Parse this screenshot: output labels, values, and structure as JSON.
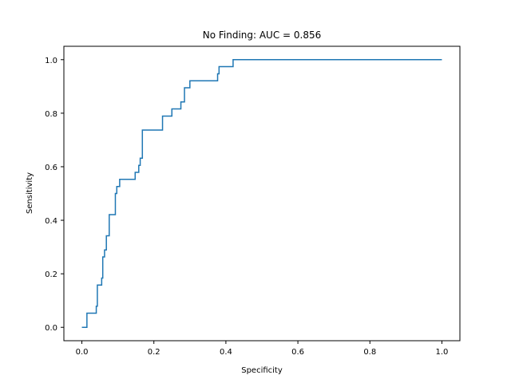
{
  "chart_data": {
    "type": "line",
    "title": "No Finding: AUC = 0.856",
    "xlabel": "Specificity",
    "ylabel": "Sensitivity",
    "xlim": [
      -0.05,
      1.05
    ],
    "ylim": [
      -0.05,
      1.05
    ],
    "xticks": [
      "0.0",
      "0.2",
      "0.4",
      "0.6",
      "0.8",
      "1.0"
    ],
    "yticks": [
      "0.0",
      "0.2",
      "0.4",
      "0.6",
      "0.8",
      "1.0"
    ],
    "grid": false,
    "color": "#1f77b4",
    "series": [
      {
        "x": [
          0.0,
          0.014,
          0.014,
          0.04,
          0.04,
          0.043,
          0.043,
          0.055,
          0.055,
          0.058,
          0.058,
          0.063,
          0.063,
          0.068,
          0.068,
          0.076,
          0.076,
          0.093,
          0.093,
          0.097,
          0.097,
          0.105,
          0.105,
          0.148,
          0.148,
          0.158,
          0.158,
          0.162,
          0.162,
          0.168,
          0.168,
          0.224,
          0.224,
          0.25,
          0.25,
          0.275,
          0.275,
          0.285,
          0.285,
          0.3,
          0.3,
          0.377,
          0.377,
          0.381,
          0.381,
          0.42,
          0.42,
          1.0
        ],
        "y": [
          0.0,
          0.0,
          0.053,
          0.053,
          0.079,
          0.079,
          0.158,
          0.158,
          0.184,
          0.184,
          0.263,
          0.263,
          0.289,
          0.289,
          0.342,
          0.342,
          0.421,
          0.421,
          0.5,
          0.5,
          0.526,
          0.526,
          0.553,
          0.553,
          0.579,
          0.579,
          0.605,
          0.605,
          0.632,
          0.632,
          0.737,
          0.737,
          0.789,
          0.789,
          0.816,
          0.816,
          0.842,
          0.842,
          0.895,
          0.895,
          0.921,
          0.921,
          0.947,
          0.947,
          0.974,
          0.974,
          1.0,
          1.0
        ]
      }
    ]
  }
}
